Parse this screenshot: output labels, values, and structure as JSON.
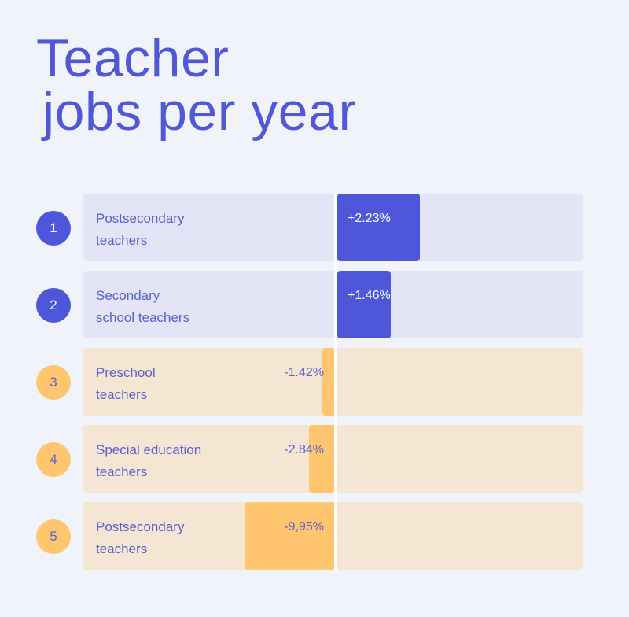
{
  "title": {
    "line1": "Teacher",
    "line2": "jobs per year"
  },
  "colors": {
    "positive_bar": "#4e56da",
    "positive_track": "#e3e5f6",
    "negative_bar": "#ffc56f",
    "negative_track": "#f5e6d3",
    "label_text": "#5a60d3",
    "title_text": "#5158d8"
  },
  "chart_data": {
    "type": "bar",
    "orientation": "horizontal-diverging",
    "title": "Teacher jobs per year",
    "categories": [
      "Postsecondary\nteachers",
      "Secondary\nschool teachers",
      "Preschool\nteachers",
      "Special education\nteachers",
      "Postsecondary\nteachers"
    ],
    "ranks": [
      "1",
      "2",
      "3",
      "4",
      "5"
    ],
    "values": [
      2.23,
      1.46,
      -1.42,
      -2.84,
      -9.95
    ],
    "value_labels": [
      "+2.23%",
      "+1.46%",
      "-1.42%",
      "-2.84%",
      "-9,95%"
    ],
    "xlim": [
      -9.95,
      2.23
    ]
  }
}
